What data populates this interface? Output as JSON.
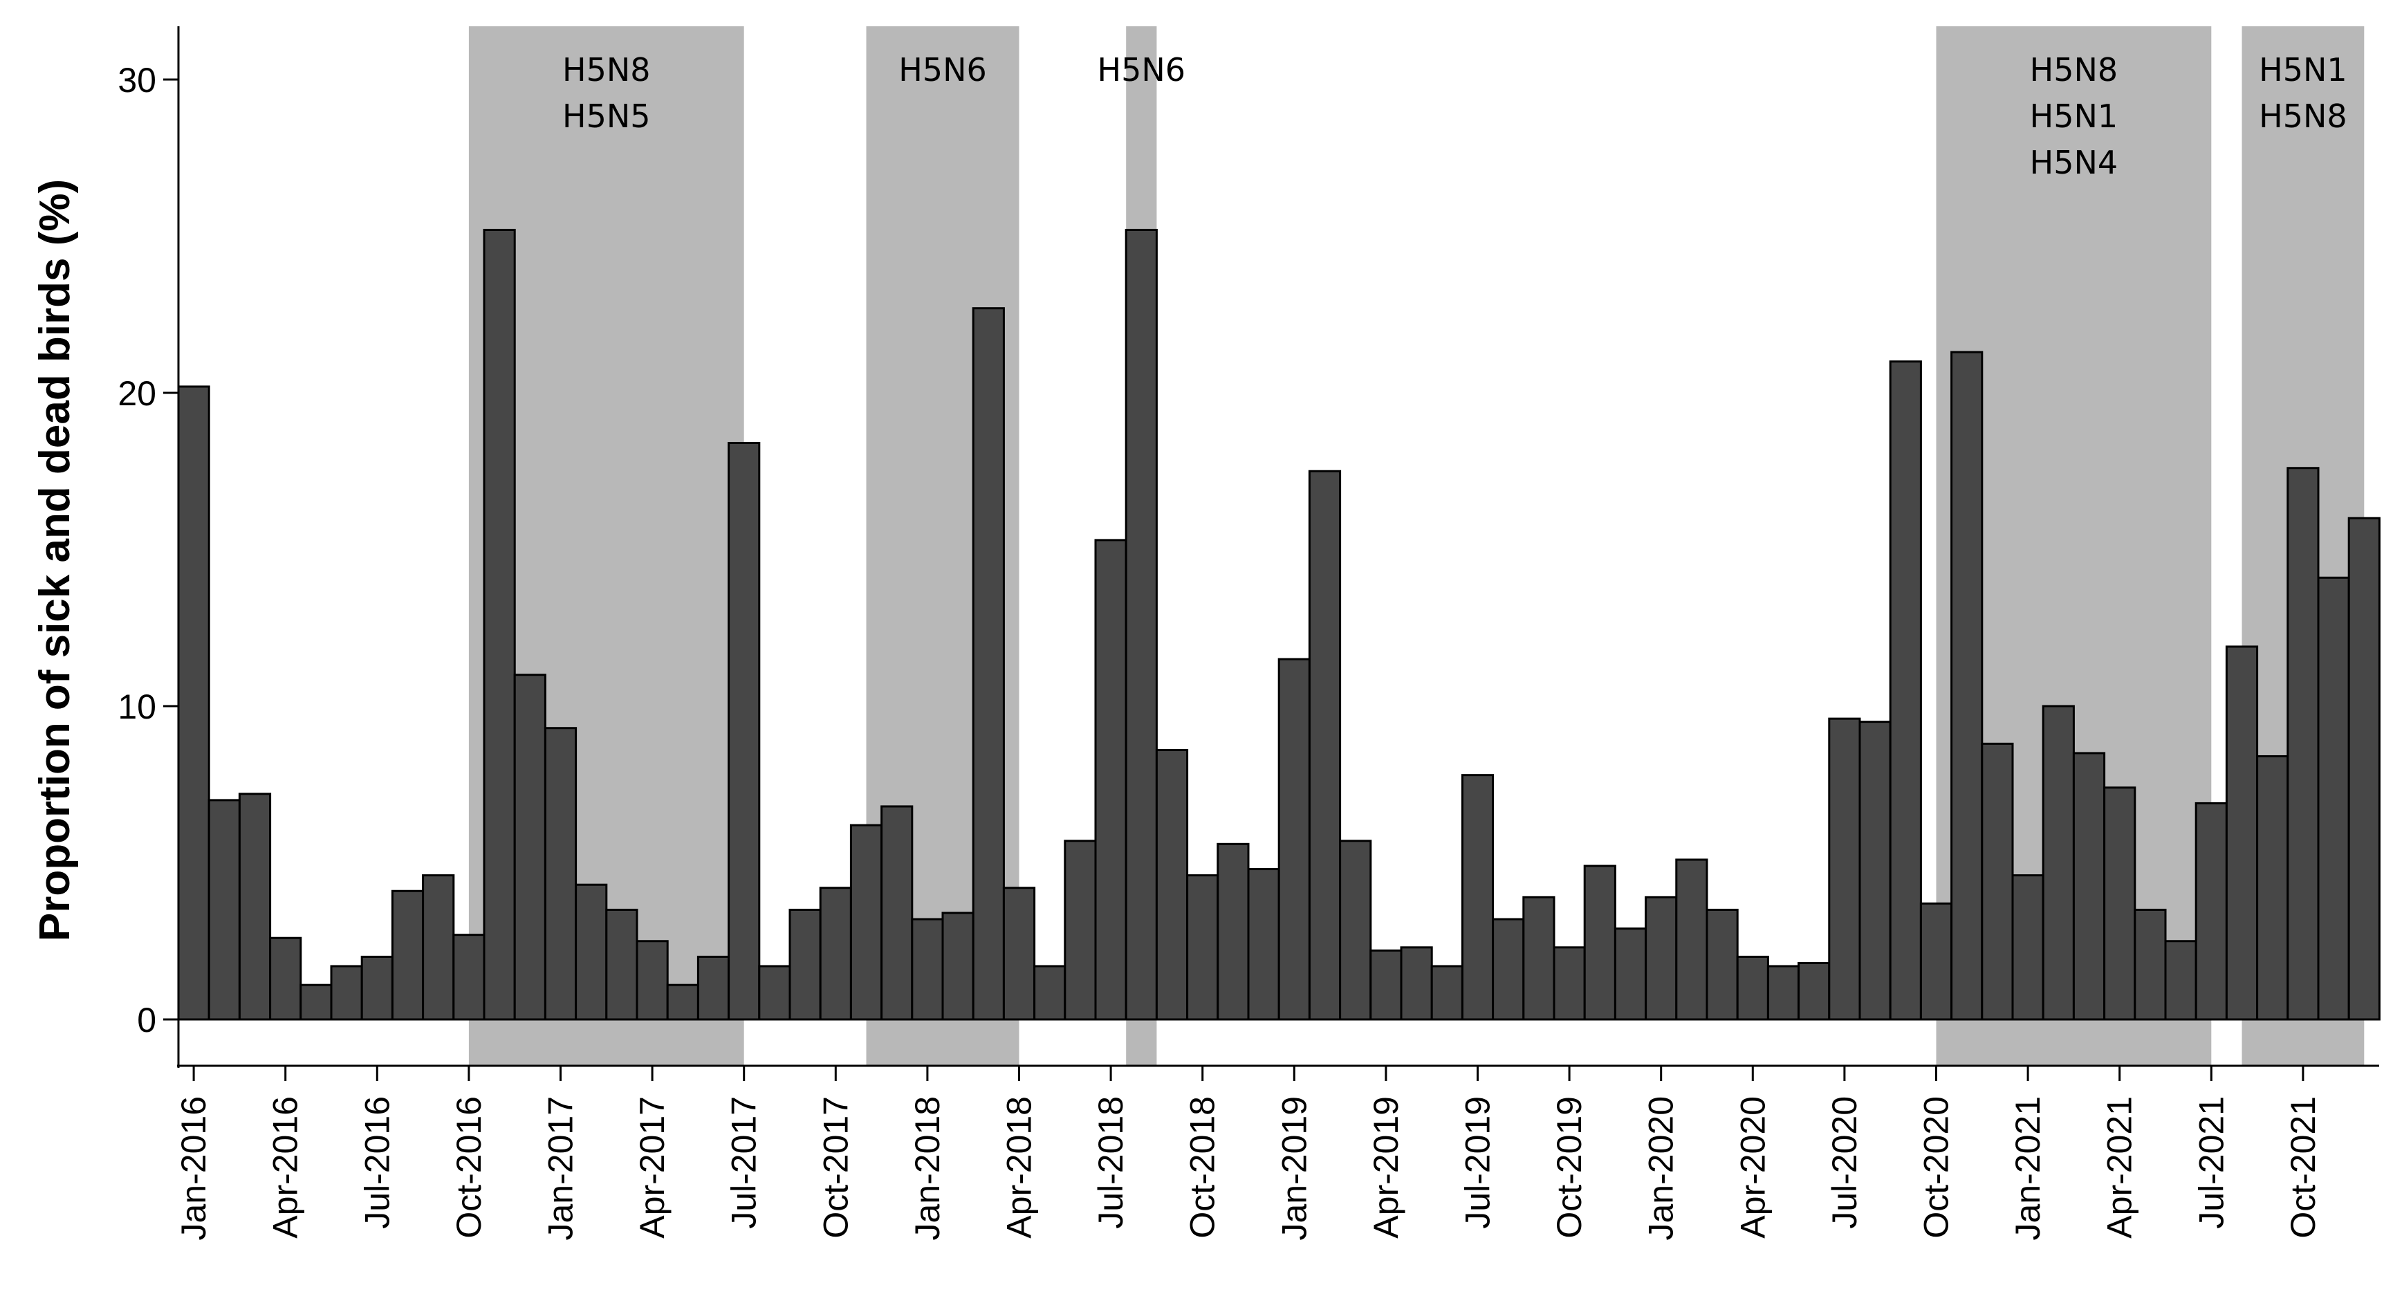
{
  "chart_data": {
    "type": "bar",
    "ylabel": "Proportion of sick and dead birds (%)",
    "xlabel": "",
    "ylim": [
      0,
      32
    ],
    "yticks": [
      0,
      10,
      20,
      30
    ],
    "start": "Jan-2016",
    "categories": [
      "Jan-2016",
      "Feb-2016",
      "Mar-2016",
      "Apr-2016",
      "May-2016",
      "Jun-2016",
      "Jul-2016",
      "Aug-2016",
      "Sep-2016",
      "Oct-2016",
      "Nov-2016",
      "Dec-2016",
      "Jan-2017",
      "Feb-2017",
      "Mar-2017",
      "Apr-2017",
      "May-2017",
      "Jun-2017",
      "Jul-2017",
      "Aug-2017",
      "Sep-2017",
      "Oct-2017",
      "Nov-2017",
      "Dec-2017",
      "Jan-2018",
      "Feb-2018",
      "Mar-2018",
      "Apr-2018",
      "May-2018",
      "Jun-2018",
      "Jul-2018",
      "Aug-2018",
      "Sep-2018",
      "Oct-2018",
      "Nov-2018",
      "Dec-2018",
      "Jan-2019",
      "Feb-2019",
      "Mar-2019",
      "Apr-2019",
      "May-2019",
      "Jun-2019",
      "Jul-2019",
      "Aug-2019",
      "Sep-2019",
      "Oct-2019",
      "Nov-2019",
      "Dec-2019",
      "Jan-2020",
      "Feb-2020",
      "Mar-2020",
      "Apr-2020",
      "May-2020",
      "Jun-2020",
      "Jul-2020",
      "Aug-2020",
      "Sep-2020",
      "Oct-2020",
      "Nov-2020",
      "Dec-2020",
      "Jan-2021",
      "Feb-2021",
      "Mar-2021",
      "Apr-2021",
      "May-2021",
      "Jun-2021",
      "Jul-2021",
      "Aug-2021",
      "Sep-2021",
      "Oct-2021",
      "Nov-2021",
      "Dec-2021"
    ],
    "values": [
      20.2,
      7.0,
      7.2,
      2.6,
      1.1,
      1.7,
      2.0,
      4.1,
      4.6,
      2.7,
      25.2,
      11.0,
      9.3,
      4.3,
      3.5,
      2.5,
      1.1,
      2.0,
      18.4,
      1.7,
      3.5,
      4.2,
      6.2,
      6.8,
      3.2,
      3.4,
      22.7,
      4.2,
      1.7,
      5.7,
      15.3,
      25.2,
      8.6,
      4.6,
      5.6,
      4.8,
      11.5,
      17.5,
      5.7,
      2.2,
      2.3,
      1.7,
      7.8,
      3.2,
      3.9,
      2.3,
      4.9,
      2.9,
      3.9,
      5.1,
      3.5,
      2.0,
      1.7,
      1.8,
      9.6,
      9.5,
      21.0,
      3.7,
      21.3,
      8.8,
      4.6,
      10.0,
      8.5,
      7.4,
      3.5,
      2.5,
      6.9,
      11.9,
      8.4,
      17.6,
      14.1,
      16.0
    ],
    "xticks": [
      "Jan-2016",
      "Apr-2016",
      "Jul-2016",
      "Oct-2016",
      "Jan-2017",
      "Apr-2017",
      "Jul-2017",
      "Oct-2017",
      "Jan-2018",
      "Apr-2018",
      "Jul-2018",
      "Oct-2018",
      "Jan-2019",
      "Apr-2019",
      "Jul-2019",
      "Oct-2019",
      "Jan-2020",
      "Apr-2020",
      "Jul-2020",
      "Oct-2020",
      "Jan-2021",
      "Apr-2021",
      "Jul-2021",
      "Oct-2021"
    ],
    "shaded_periods": [
      {
        "start": "Oct-2016",
        "end": "Jul-2017",
        "labels": [
          "H5N8",
          "H5N5"
        ]
      },
      {
        "start": "Nov-2017",
        "end": "Apr-2018",
        "labels": [
          "H5N6"
        ]
      },
      {
        "start": "Aug-2018",
        "end": "Aug-2018",
        "labels": [
          "H5N6"
        ]
      },
      {
        "start": "Oct-2020",
        "end": "Jul-2021",
        "labels": [
          "H5N8",
          "H5N1",
          "H5N4"
        ]
      },
      {
        "start": "Aug-2021",
        "end": "Dec-2021",
        "labels": [
          "H5N1",
          "H5N8"
        ]
      }
    ],
    "colors": {
      "bar": "#474747",
      "bar_edge": "#000000",
      "shade": "#b8b8b8",
      "axis": "#000000"
    }
  }
}
